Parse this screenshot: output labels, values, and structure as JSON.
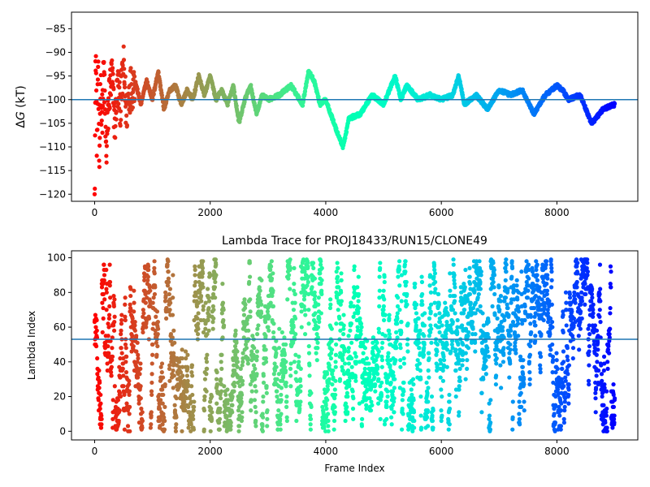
{
  "chart_data": [
    {
      "type": "scatter",
      "title": "",
      "xlabel": "",
      "ylabel": "ΔG (kT)",
      "ylabel_parts": [
        "Δ",
        "G",
        " (kT)"
      ],
      "xlim": [
        -400,
        9400
      ],
      "ylim": [
        -121.5,
        -81.5
      ],
      "xticks": [
        0,
        2000,
        4000,
        6000,
        8000
      ],
      "xtick_labels": [
        "0",
        "2000",
        "4000",
        "6000",
        "8000"
      ],
      "yticks": [
        -85,
        -90,
        -95,
        -100,
        -105,
        -110,
        -115,
        -120
      ],
      "ytick_labels": [
        "−85",
        "−90",
        "−95",
        "−100",
        "−105",
        "−110",
        "−115",
        "−120"
      ],
      "hline": -100,
      "hline_color": "#1f77b4",
      "colormap": "rainbow (frame index; red at start → violet at end)",
      "series_knots": [
        [
          0,
          -120
        ],
        [
          20,
          -88
        ],
        [
          40,
          -110
        ],
        [
          60,
          -92
        ],
        [
          80,
          -116
        ],
        [
          100,
          -96
        ],
        [
          130,
          -104
        ],
        [
          160,
          -93
        ],
        [
          200,
          -112
        ],
        [
          250,
          -99
        ],
        [
          300,
          -95
        ],
        [
          350,
          -105
        ],
        [
          400,
          -97
        ],
        [
          450,
          -101
        ],
        [
          500,
          -93
        ],
        [
          550,
          -103
        ],
        [
          600,
          -98
        ],
        [
          700,
          -96
        ],
        [
          800,
          -101
        ],
        [
          900,
          -96
        ],
        [
          1000,
          -100
        ],
        [
          1100,
          -94
        ],
        [
          1200,
          -102
        ],
        [
          1300,
          -98
        ],
        [
          1400,
          -97
        ],
        [
          1500,
          -101
        ],
        [
          1600,
          -98
        ],
        [
          1700,
          -100
        ],
        [
          1800,
          -95
        ],
        [
          1900,
          -99
        ],
        [
          2000,
          -95
        ],
        [
          2100,
          -100
        ],
        [
          2200,
          -98
        ],
        [
          2300,
          -101
        ],
        [
          2400,
          -97
        ],
        [
          2500,
          -105
        ],
        [
          2600,
          -100
        ],
        [
          2700,
          -97
        ],
        [
          2800,
          -103
        ],
        [
          2900,
          -99
        ],
        [
          3000,
          -100
        ],
        [
          3200,
          -99
        ],
        [
          3400,
          -97
        ],
        [
          3600,
          -101
        ],
        [
          3700,
          -94
        ],
        [
          3800,
          -96
        ],
        [
          3900,
          -101
        ],
        [
          4000,
          -100
        ],
        [
          4200,
          -107
        ],
        [
          4300,
          -110
        ],
        [
          4400,
          -104
        ],
        [
          4600,
          -103
        ],
        [
          4800,
          -99
        ],
        [
          5000,
          -101
        ],
        [
          5200,
          -95
        ],
        [
          5300,
          -100
        ],
        [
          5400,
          -97
        ],
        [
          5600,
          -100
        ],
        [
          5800,
          -99
        ],
        [
          6000,
          -100
        ],
        [
          6200,
          -99
        ],
        [
          6300,
          -95
        ],
        [
          6400,
          -101
        ],
        [
          6600,
          -99
        ],
        [
          6800,
          -102
        ],
        [
          7000,
          -98
        ],
        [
          7200,
          -99
        ],
        [
          7400,
          -98
        ],
        [
          7600,
          -103
        ],
        [
          7800,
          -99
        ],
        [
          8000,
          -97
        ],
        [
          8100,
          -98
        ],
        [
          8200,
          -100
        ],
        [
          8400,
          -99
        ],
        [
          8600,
          -105
        ],
        [
          8800,
          -102
        ],
        [
          9000,
          -101
        ]
      ]
    },
    {
      "type": "scatter",
      "title": "Lambda Trace for PROJ18433/RUN15/CLONE49",
      "xlabel": "Frame Index",
      "ylabel": "Lambda Index",
      "xlim": [
        -400,
        9400
      ],
      "ylim": [
        -5,
        104
      ],
      "xticks": [
        0,
        2000,
        4000,
        6000,
        8000
      ],
      "xtick_labels": [
        "0",
        "2000",
        "4000",
        "6000",
        "8000"
      ],
      "yticks": [
        0,
        20,
        40,
        60,
        80,
        100
      ],
      "ytick_labels": [
        "0",
        "20",
        "40",
        "60",
        "80",
        "100"
      ],
      "hline": 53,
      "hline_color": "#1f77b4",
      "colormap": "rainbow (frame index; red at start → violet at end)",
      "value_range": [
        0,
        99
      ],
      "frames": [
        0,
        9000
      ]
    }
  ]
}
